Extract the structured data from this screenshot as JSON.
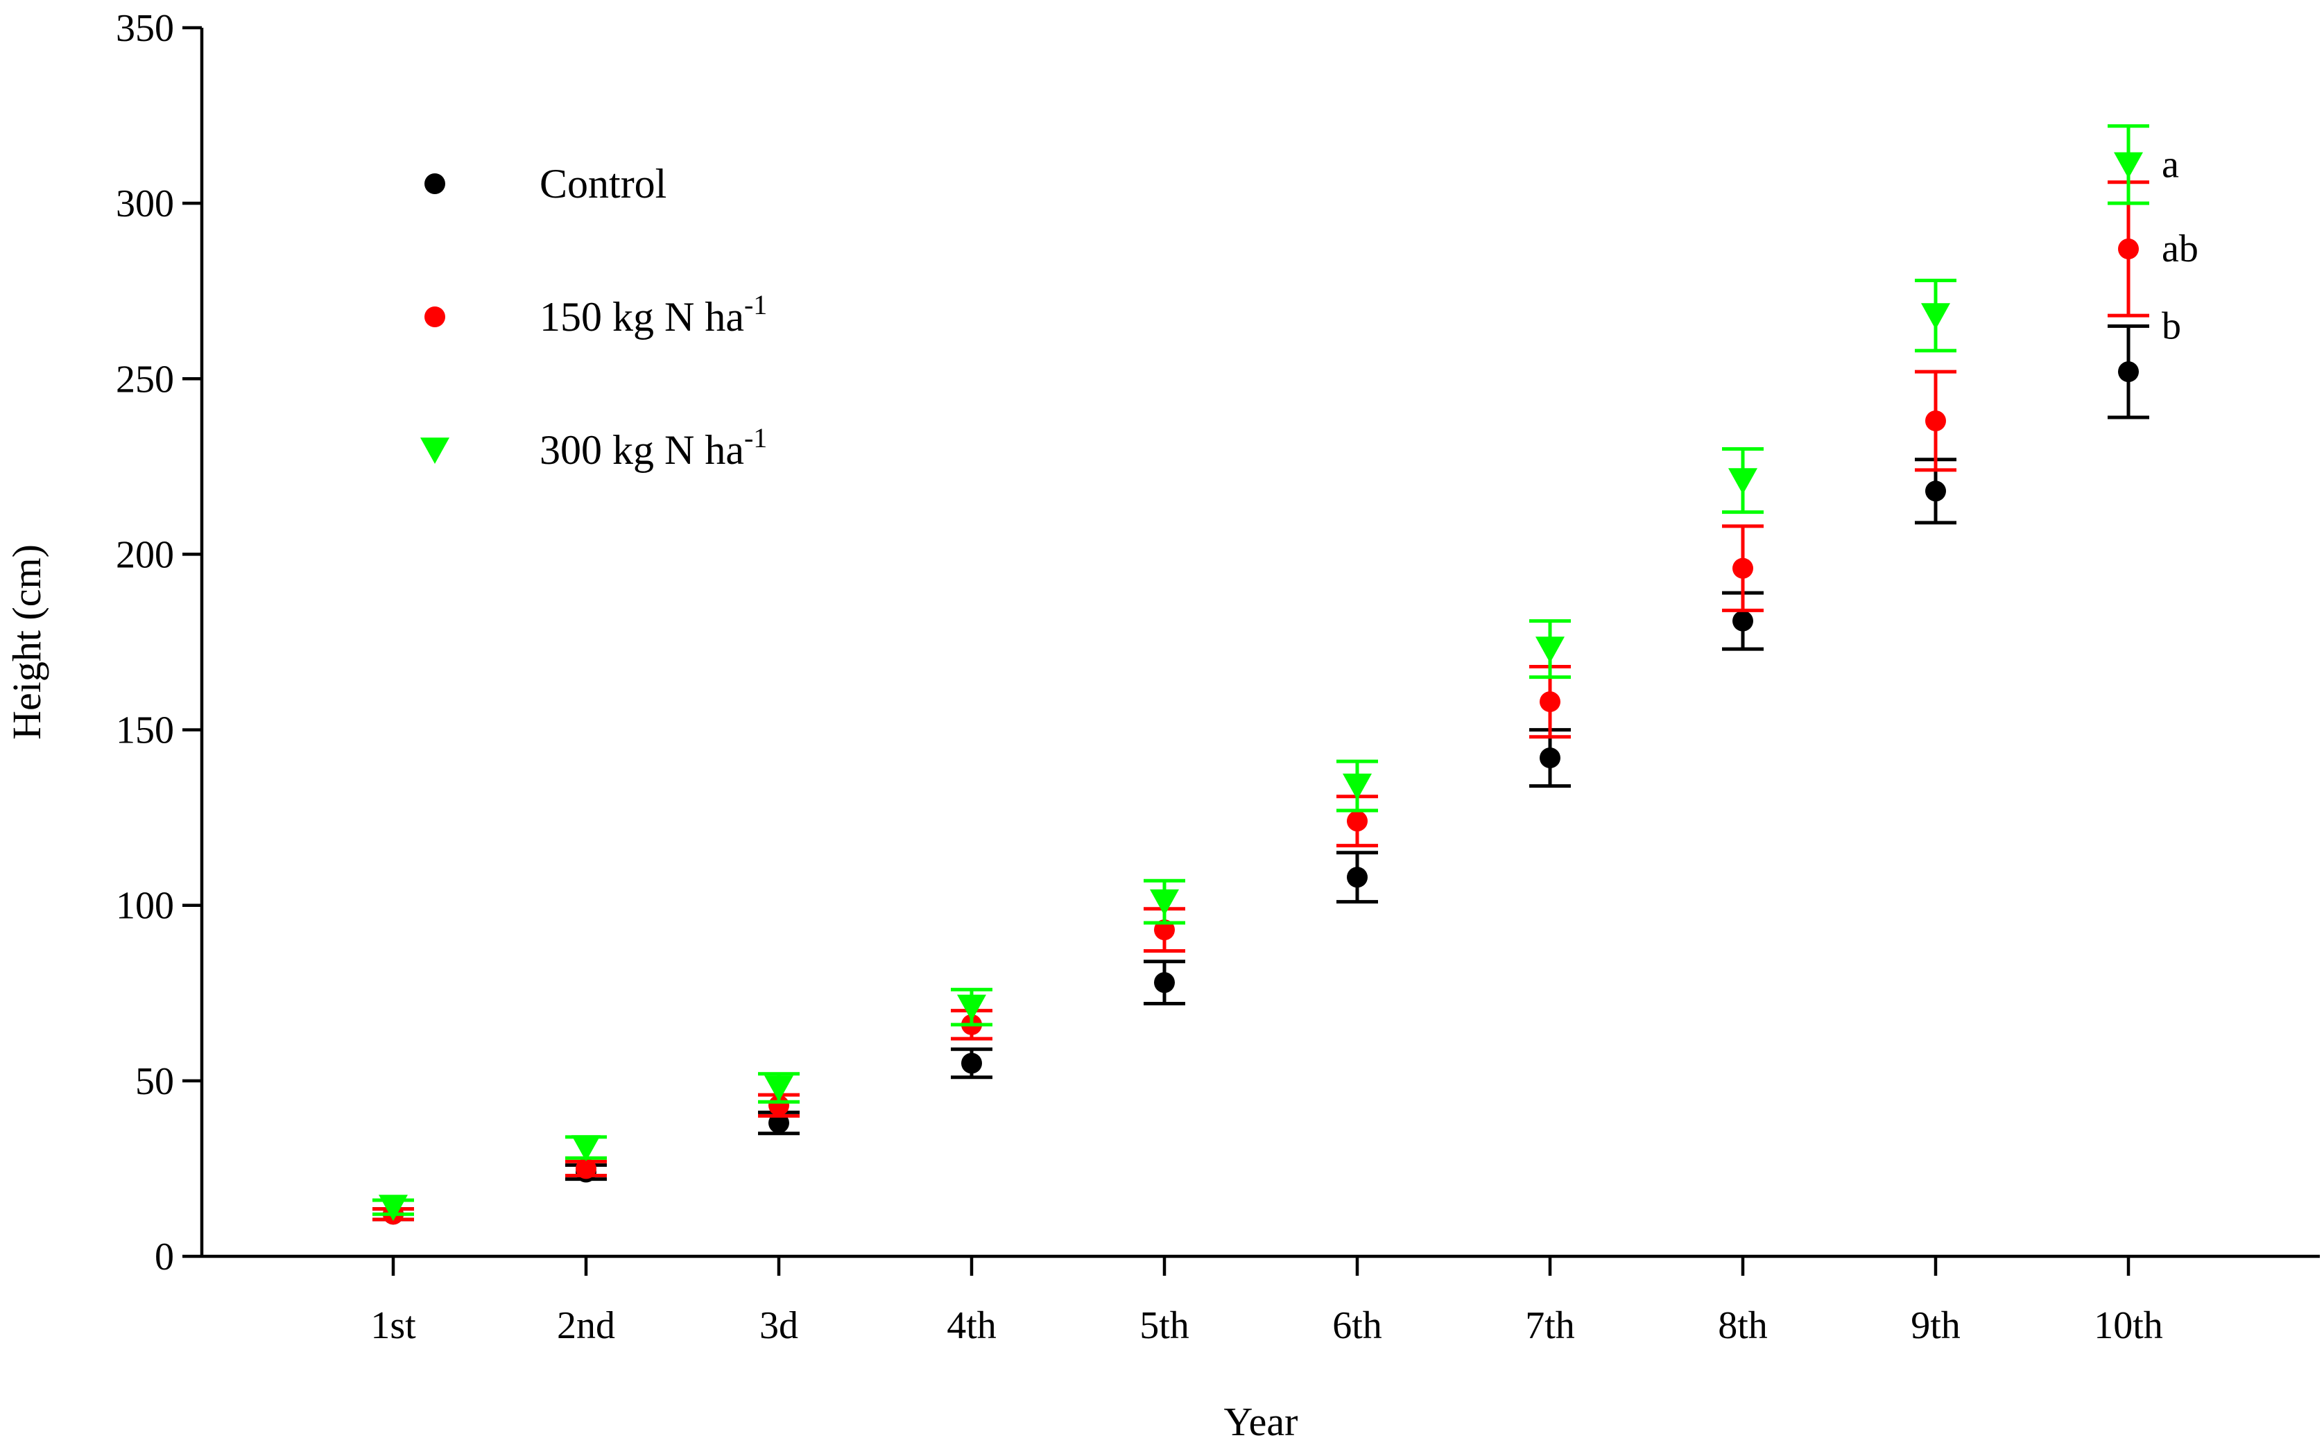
{
  "chart_data": {
    "type": "scatter",
    "title": "",
    "xlabel": "Year",
    "ylabel": "Height (cm)",
    "categories": [
      "1st",
      "2nd",
      "3d",
      "4th",
      "5th",
      "6th",
      "7th",
      "8th",
      "9th",
      "10th"
    ],
    "ylim": [
      0,
      350
    ],
    "yticks": [
      0,
      50,
      100,
      150,
      200,
      250,
      300,
      350
    ],
    "grid": false,
    "legend_position": "top-left",
    "series": [
      {
        "name": "Control",
        "legend_base": "Control",
        "legend_sup": "",
        "marker": "circle",
        "color": "#000000",
        "values": [
          12,
          24,
          38,
          55,
          78,
          108,
          142,
          181,
          218,
          252
        ],
        "errors": [
          1.5,
          2,
          3,
          4,
          6,
          7,
          8,
          8,
          9,
          13
        ]
      },
      {
        "name": "150 kg N ha-1",
        "legend_base": "150 kg N ha",
        "legend_sup": "-1",
        "marker": "circle",
        "color": "#ff0000",
        "values": [
          12,
          25,
          43,
          66,
          93,
          124,
          158,
          196,
          238,
          287
        ],
        "errors": [
          1.5,
          2,
          3,
          4,
          6,
          7,
          10,
          12,
          14,
          19
        ]
      },
      {
        "name": "300 kg N ha-1",
        "legend_base": "300 kg N ha",
        "legend_sup": "-1",
        "marker": "triangle-down",
        "color": "#00ff00",
        "values": [
          14,
          31,
          48,
          71,
          101,
          134,
          173,
          221,
          268,
          311
        ],
        "errors": [
          2,
          3,
          4,
          5,
          6,
          7,
          8,
          9,
          10,
          11
        ]
      }
    ],
    "annotations": [
      {
        "text": "a",
        "category": "10th",
        "y": 311
      },
      {
        "text": "ab",
        "category": "10th",
        "y": 287
      },
      {
        "text": "b",
        "category": "10th",
        "y": 265
      }
    ]
  }
}
